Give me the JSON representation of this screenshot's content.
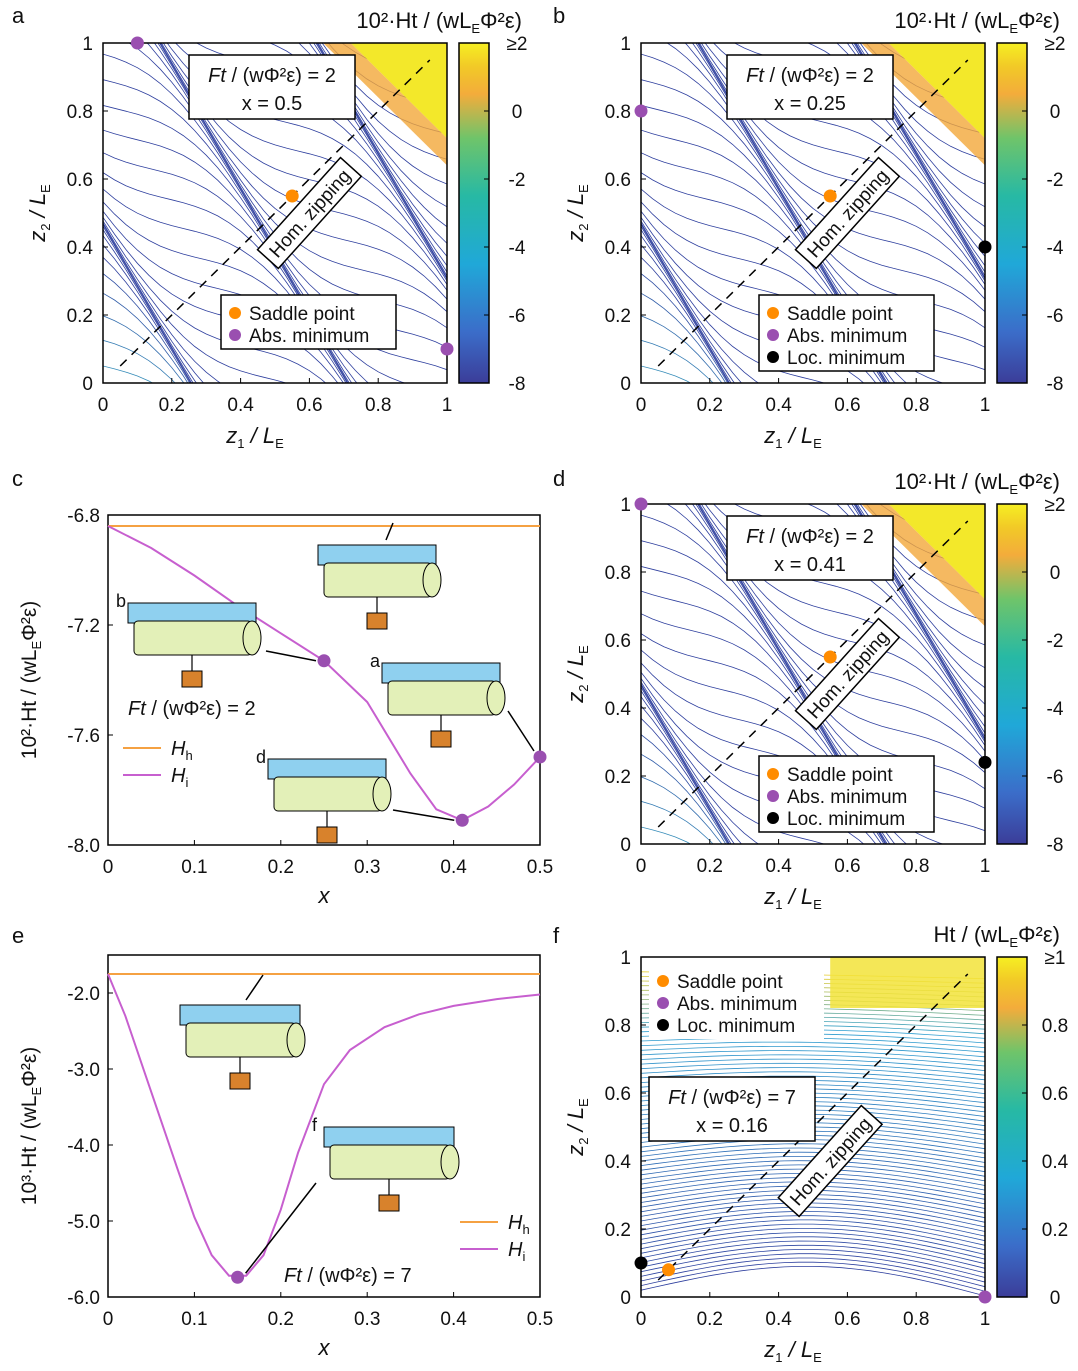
{
  "colors": {
    "orange": "#ff8c00",
    "purple": "#9a4fb0",
    "black": "#000000",
    "contour": "#2e3f9e",
    "h_line": "#f5a142",
    "i_line": "#c75fcf",
    "inset_blue": "#8fd0ef",
    "inset_green": "#e3f0b8",
    "inset_orange": "#d8822c"
  },
  "labels": {
    "a": "a",
    "b": "b",
    "c": "c",
    "d": "d",
    "e": "e",
    "f": "f",
    "hom_zipping": "Hom. zipping",
    "saddle": "Saddle point",
    "abs_min": "Abs. minimum",
    "loc_min": "Loc. minimum",
    "x_z1": "z",
    "x_z1_sub": "1",
    "slash": " / L",
    "sub_E": "E",
    "y_z2": "z",
    "y_z2_sub": "2",
    "x_var": "x",
    "cb_top_2": "10²·Ht / (wL",
    "cb_top_tail": "Φ²ε)",
    "cb_top_f": "Ht / (wL",
    "ylabel_c_pre": "10²·Ht / (wL",
    "ylabel_e_pre": "10³·Ht / (wL",
    "ylabel_tail": "Φ²ε)",
    "ft_pre": "Ft",
    "ft2": " / (wΦ²ε) = 2",
    "ft7": " / (wΦ²ε) = 7",
    "leg_Hh": "H",
    "leg_Hh_sub": "h",
    "leg_Hi": "H",
    "leg_Hi_sub": "i",
    "inset_b": "b",
    "inset_a": "a",
    "inset_d": "d",
    "inset_f": "f"
  },
  "panels_map": [
    {
      "id": "a",
      "x_text": "x = 0.5",
      "xticks": [
        "0",
        "0.2",
        "0.4",
        "0.6",
        "0.8",
        "1"
      ],
      "yticks": [
        "0",
        "0.2",
        "0.4",
        "0.6",
        "0.8",
        "1"
      ],
      "cbticks": [
        "≥2",
        "0",
        "-2",
        "-4",
        "-6",
        "-8"
      ],
      "points": [
        {
          "type": "saddle",
          "z1": 0.55,
          "z2": 0.55
        },
        {
          "type": "abs_min",
          "z1": 0.1,
          "z2": 1.0
        },
        {
          "type": "abs_min",
          "z1": 1.0,
          "z2": 0.1
        }
      ],
      "legend": [
        "saddle",
        "abs_min"
      ]
    },
    {
      "id": "b",
      "x_text": "x = 0.25",
      "xticks": [
        "0",
        "0.2",
        "0.4",
        "0.6",
        "0.8",
        "1"
      ],
      "yticks": [
        "0",
        "0.2",
        "0.4",
        "0.6",
        "0.8",
        "1"
      ],
      "cbticks": [
        "≥2",
        "0",
        "-2",
        "-4",
        "-6",
        "-8"
      ],
      "points": [
        {
          "type": "saddle",
          "z1": 0.55,
          "z2": 0.55
        },
        {
          "type": "abs_min",
          "z1": 0.0,
          "z2": 0.8
        },
        {
          "type": "loc_min",
          "z1": 1.0,
          "z2": 0.4
        }
      ],
      "legend": [
        "saddle",
        "abs_min",
        "loc_min"
      ]
    },
    {
      "id": "d",
      "x_text": "x = 0.41",
      "xticks": [
        "0",
        "0.2",
        "0.4",
        "0.6",
        "0.8",
        "1"
      ],
      "yticks": [
        "0",
        "0.2",
        "0.4",
        "0.6",
        "0.8",
        "1"
      ],
      "cbticks": [
        "≥2",
        "0",
        "-2",
        "-4",
        "-6",
        "-8"
      ],
      "points": [
        {
          "type": "saddle",
          "z1": 0.55,
          "z2": 0.55
        },
        {
          "type": "abs_min",
          "z1": 0.0,
          "z2": 1.0
        },
        {
          "type": "loc_min",
          "z1": 1.0,
          "z2": 0.24
        }
      ],
      "legend": [
        "saddle",
        "abs_min",
        "loc_min"
      ]
    },
    {
      "id": "f",
      "x_text": "x = 0.16",
      "xticks": [
        "0",
        "0.2",
        "0.4",
        "0.6",
        "0.8",
        "1"
      ],
      "yticks": [
        "0",
        "0.2",
        "0.4",
        "0.6",
        "0.8",
        "1"
      ],
      "cbticks": [
        "≥1",
        "0.8",
        "0.6",
        "0.4",
        "0.2",
        "0"
      ],
      "points": [
        {
          "type": "saddle",
          "z1": 0.08,
          "z2": 0.08
        },
        {
          "type": "abs_min",
          "z1": 1.0,
          "z2": 0.0
        },
        {
          "type": "loc_min",
          "z1": 0.0,
          "z2": 0.1
        }
      ],
      "legend": [
        "saddle",
        "abs_min",
        "loc_min"
      ]
    }
  ],
  "chart_data": [
    {
      "id": "c",
      "type": "line",
      "xlabel": "x",
      "ylabel": "10²·Ht / (wLEΦ²ε)",
      "xlim": [
        0,
        0.5
      ],
      "ylim": [
        -8.0,
        -6.8
      ],
      "xticks": [
        "0",
        "0.1",
        "0.2",
        "0.3",
        "0.4",
        "0.5"
      ],
      "yticks": [
        "-6.8",
        "-7.2",
        "-7.6",
        "-8.0"
      ],
      "series": [
        {
          "name": "Hh",
          "x": [
            0,
            0.5
          ],
          "y": [
            -6.84,
            -6.84
          ]
        },
        {
          "name": "Hi",
          "x": [
            0,
            0.05,
            0.1,
            0.15,
            0.2,
            0.25,
            0.3,
            0.35,
            0.38,
            0.41,
            0.44,
            0.47,
            0.5
          ],
          "y": [
            -6.84,
            -6.92,
            -7.02,
            -7.13,
            -7.23,
            -7.33,
            -7.48,
            -7.74,
            -7.87,
            -7.91,
            -7.86,
            -7.78,
            -7.68
          ]
        }
      ],
      "markers": [
        {
          "x": 0.25,
          "y": -7.33
        },
        {
          "x": 0.41,
          "y": -7.91
        },
        {
          "x": 0.5,
          "y": -7.68
        }
      ]
    },
    {
      "id": "e",
      "type": "line",
      "xlabel": "x",
      "ylabel": "10³·Ht / (wLEΦ²ε)",
      "xlim": [
        0,
        0.5
      ],
      "ylim": [
        -6.0,
        -1.5
      ],
      "xticks": [
        "0",
        "0.1",
        "0.2",
        "0.3",
        "0.4",
        "0.5"
      ],
      "yticks": [
        "-2.0",
        "-3.0",
        "-4.0",
        "-5.0",
        "-6.0"
      ],
      "series": [
        {
          "name": "Hh",
          "x": [
            0,
            0.5
          ],
          "y": [
            -1.75,
            -1.75
          ]
        },
        {
          "name": "Hi",
          "x": [
            0,
            0.02,
            0.05,
            0.08,
            0.1,
            0.12,
            0.14,
            0.16,
            0.18,
            0.2,
            0.22,
            0.25,
            0.28,
            0.32,
            0.36,
            0.4,
            0.45,
            0.5
          ],
          "y": [
            -1.75,
            -2.3,
            -3.3,
            -4.3,
            -4.95,
            -5.45,
            -5.72,
            -5.72,
            -5.45,
            -4.85,
            -4.1,
            -3.2,
            -2.75,
            -2.45,
            -2.28,
            -2.17,
            -2.08,
            -2.02
          ]
        }
      ],
      "markers": [
        {
          "x": 0.15,
          "y": -5.74
        }
      ]
    }
  ]
}
